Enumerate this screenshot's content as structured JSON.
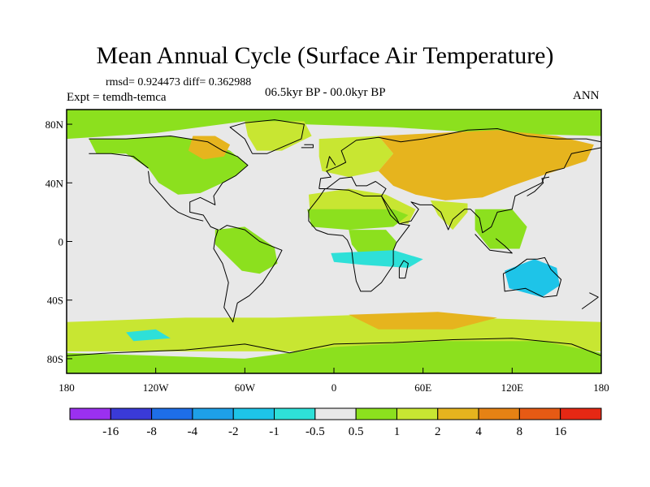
{
  "chart_data": {
    "type": "heatmap",
    "title": "Mean Annual Cycle (Surface Air Temperature)",
    "stats_line": "rmsd= 0.924473 diff= 0.362988",
    "expt_line": "Expt = temdh-temca",
    "period_line": "06.5kyr BP - 00.0kyr BP",
    "season": "ANN",
    "xlim": [
      -180,
      180
    ],
    "ylim": [
      -90,
      90
    ],
    "x_ticks": [
      {
        "value": -180,
        "label": "180"
      },
      {
        "value": -120,
        "label": "120W"
      },
      {
        "value": -60,
        "label": "60W"
      },
      {
        "value": 0,
        "label": "0"
      },
      {
        "value": 60,
        "label": "60E"
      },
      {
        "value": 120,
        "label": "120E"
      },
      {
        "value": 180,
        "label": "180"
      }
    ],
    "y_ticks": [
      {
        "value": 80,
        "label": "80N"
      },
      {
        "value": 40,
        "label": "40N"
      },
      {
        "value": 0,
        "label": "0"
      },
      {
        "value": -40,
        "label": "40S"
      },
      {
        "value": -80,
        "label": "80S"
      }
    ],
    "levels": [
      "-16",
      "-8",
      "-4",
      "-2",
      "-1",
      "-0.5",
      "0.5",
      "1",
      "2",
      "4",
      "8",
      "16"
    ],
    "colors": [
      "#9b30f0",
      "#3a3ad8",
      "#1e6ee8",
      "#1ea0e8",
      "#1ec4e8",
      "#2ee0d8",
      "#e8e8e8",
      "#8ce01e",
      "#c8e632",
      "#e6b41e",
      "#e68214",
      "#e65a14",
      "#e62814"
    ],
    "regions": [
      {
        "name": "arctic-band",
        "bin": 7,
        "pts": [
          [
            -180,
            90
          ],
          [
            180,
            90
          ],
          [
            180,
            72
          ],
          [
            100,
            74
          ],
          [
            40,
            78
          ],
          [
            -20,
            80
          ],
          [
            -60,
            82
          ],
          [
            -120,
            74
          ],
          [
            -180,
            70
          ]
        ]
      },
      {
        "name": "north-america",
        "bin": 7,
        "pts": [
          [
            -165,
            70
          ],
          [
            -140,
            70
          ],
          [
            -110,
            72
          ],
          [
            -85,
            68
          ],
          [
            -70,
            62
          ],
          [
            -58,
            52
          ],
          [
            -66,
            45
          ],
          [
            -75,
            40
          ],
          [
            -90,
            33
          ],
          [
            -105,
            32
          ],
          [
            -118,
            40
          ],
          [
            -125,
            50
          ],
          [
            -140,
            60
          ],
          [
            -160,
            60
          ]
        ]
      },
      {
        "name": "canada-warm",
        "bin": 9,
        "pts": [
          [
            -95,
            72
          ],
          [
            -80,
            72
          ],
          [
            -70,
            66
          ],
          [
            -74,
            58
          ],
          [
            -88,
            56
          ],
          [
            -98,
            62
          ]
        ]
      },
      {
        "name": "greenland-sea",
        "bin": 8,
        "pts": [
          [
            -60,
            82
          ],
          [
            -20,
            82
          ],
          [
            -15,
            72
          ],
          [
            -35,
            62
          ],
          [
            -52,
            62
          ],
          [
            -58,
            72
          ]
        ]
      },
      {
        "name": "europe-west",
        "bin": 8,
        "pts": [
          [
            -10,
            70
          ],
          [
            30,
            72
          ],
          [
            40,
            60
          ],
          [
            30,
            48
          ],
          [
            10,
            44
          ],
          [
            -8,
            48
          ],
          [
            -10,
            58
          ]
        ]
      },
      {
        "name": "eurasia-warm",
        "bin": 9,
        "pts": [
          [
            30,
            72
          ],
          [
            70,
            74
          ],
          [
            110,
            76
          ],
          [
            150,
            72
          ],
          [
            175,
            66
          ],
          [
            170,
            55
          ],
          [
            140,
            45
          ],
          [
            120,
            38
          ],
          [
            100,
            30
          ],
          [
            75,
            28
          ],
          [
            55,
            32
          ],
          [
            40,
            38
          ],
          [
            30,
            48
          ],
          [
            40,
            60
          ]
        ]
      },
      {
        "name": "north-africa",
        "bin": 8,
        "pts": [
          [
            -17,
            32
          ],
          [
            10,
            36
          ],
          [
            35,
            32
          ],
          [
            55,
            22
          ],
          [
            50,
            12
          ],
          [
            30,
            14
          ],
          [
            10,
            16
          ],
          [
            -16,
            18
          ]
        ]
      },
      {
        "name": "sahel-band",
        "bin": 7,
        "pts": [
          [
            -18,
            22
          ],
          [
            40,
            22
          ],
          [
            50,
            18
          ],
          [
            40,
            10
          ],
          [
            10,
            8
          ],
          [
            -15,
            10
          ]
        ]
      },
      {
        "name": "india",
        "bin": 8,
        "pts": [
          [
            65,
            28
          ],
          [
            90,
            26
          ],
          [
            90,
            20
          ],
          [
            80,
            8
          ],
          [
            70,
            18
          ]
        ]
      },
      {
        "name": "southeast-asia",
        "bin": 7,
        "pts": [
          [
            95,
            22
          ],
          [
            120,
            22
          ],
          [
            130,
            10
          ],
          [
            125,
            -5
          ],
          [
            105,
            -5
          ],
          [
            95,
            8
          ]
        ]
      },
      {
        "name": "central-africa",
        "bin": 7,
        "pts": [
          [
            10,
            8
          ],
          [
            35,
            8
          ],
          [
            42,
            0
          ],
          [
            38,
            -12
          ],
          [
            20,
            -12
          ],
          [
            12,
            -2
          ]
        ]
      },
      {
        "name": "south-atlantic-cool",
        "bin": 5,
        "pts": [
          [
            -2,
            -8
          ],
          [
            40,
            -6
          ],
          [
            60,
            -12
          ],
          [
            50,
            -18
          ],
          [
            20,
            -16
          ],
          [
            0,
            -14
          ]
        ]
      },
      {
        "name": "australia-cool",
        "bin": 4,
        "pts": [
          [
            115,
            -20
          ],
          [
            135,
            -12
          ],
          [
            150,
            -18
          ],
          [
            152,
            -30
          ],
          [
            140,
            -38
          ],
          [
            118,
            -32
          ]
        ]
      },
      {
        "name": "south-america-green",
        "bin": 7,
        "pts": [
          [
            -80,
            8
          ],
          [
            -60,
            10
          ],
          [
            -40,
            -4
          ],
          [
            -38,
            -15
          ],
          [
            -50,
            -22
          ],
          [
            -62,
            -20
          ],
          [
            -72,
            -10
          ],
          [
            -80,
            -2
          ]
        ]
      },
      {
        "name": "southern-ocean-band",
        "bin": 8,
        "pts": [
          [
            -180,
            -55
          ],
          [
            -100,
            -52
          ],
          [
            -40,
            -52
          ],
          [
            20,
            -50
          ],
          [
            90,
            -52
          ],
          [
            180,
            -55
          ],
          [
            180,
            -75
          ],
          [
            -180,
            -75
          ]
        ]
      },
      {
        "name": "southern-ocean-warm",
        "bin": 9,
        "pts": [
          [
            10,
            -50
          ],
          [
            70,
            -48
          ],
          [
            110,
            -52
          ],
          [
            80,
            -60
          ],
          [
            30,
            -60
          ]
        ]
      },
      {
        "name": "antarctic-cool",
        "bin": 5,
        "pts": [
          [
            -140,
            -62
          ],
          [
            -120,
            -60
          ],
          [
            -110,
            -66
          ],
          [
            -135,
            -68
          ]
        ]
      },
      {
        "name": "antarctic-land",
        "bin": 7,
        "pts": [
          [
            -180,
            -76
          ],
          [
            -60,
            -80
          ],
          [
            0,
            -72
          ],
          [
            70,
            -68
          ],
          [
            140,
            -68
          ],
          [
            180,
            -76
          ],
          [
            180,
            -90
          ],
          [
            -180,
            -90
          ]
        ]
      }
    ],
    "coastlines": [
      [
        [
          -165,
          70
        ],
        [
          -140,
          70
        ],
        [
          -110,
          72
        ],
        [
          -85,
          68
        ],
        [
          -75,
          62
        ],
        [
          -65,
          58
        ],
        [
          -58,
          52
        ],
        [
          -66,
          45
        ],
        [
          -75,
          40
        ],
        [
          -81,
          31
        ],
        [
          -80,
          25
        ],
        [
          -90,
          30
        ],
        [
          -97,
          27
        ],
        [
          -97,
          20
        ],
        [
          -88,
          18
        ],
        [
          -83,
          10
        ],
        [
          -78,
          8
        ],
        [
          -80,
          2
        ],
        [
          -81,
          -5
        ],
        [
          -75,
          -15
        ],
        [
          -71,
          -28
        ],
        [
          -74,
          -45
        ],
        [
          -68,
          -55
        ],
        [
          -65,
          -42
        ],
        [
          -57,
          -37
        ],
        [
          -48,
          -28
        ],
        [
          -39,
          -14
        ],
        [
          -35,
          -6
        ],
        [
          -50,
          0
        ],
        [
          -60,
          8
        ],
        [
          -72,
          11
        ],
        [
          -77,
          8
        ]
      ],
      [
        [
          -125,
          48
        ],
        [
          -124,
          40
        ],
        [
          -117,
          32
        ],
        [
          -110,
          24
        ],
        [
          -105,
          20
        ],
        [
          -96,
          16
        ],
        [
          -88,
          14
        ]
      ],
      [
        [
          -165,
          60
        ],
        [
          -150,
          60
        ],
        [
          -135,
          58
        ],
        [
          -125,
          50
        ]
      ],
      [
        [
          -55,
          60
        ],
        [
          -45,
          60
        ],
        [
          -22,
          70
        ],
        [
          -20,
          80
        ],
        [
          -40,
          83
        ],
        [
          -60,
          81
        ],
        [
          -70,
          78
        ],
        [
          -60,
          70
        ],
        [
          -55,
          60
        ]
      ],
      [
        [
          -10,
          36
        ],
        [
          -9,
          43
        ],
        [
          -2,
          44
        ],
        [
          -5,
          48
        ],
        [
          2,
          51
        ],
        [
          8,
          54
        ],
        [
          5,
          62
        ],
        [
          15,
          69
        ],
        [
          30,
          71
        ],
        [
          45,
          68
        ],
        [
          60,
          70
        ],
        [
          75,
          73
        ],
        [
          90,
          76
        ],
        [
          110,
          77
        ],
        [
          130,
          72
        ],
        [
          150,
          70
        ],
        [
          170,
          70
        ],
        [
          180,
          68
        ]
      ],
      [
        [
          180,
          64
        ],
        [
          160,
          60
        ],
        [
          155,
          50
        ],
        [
          143,
          47
        ],
        [
          140,
          40
        ],
        [
          130,
          35
        ],
        [
          122,
          31
        ],
        [
          120,
          22
        ],
        [
          110,
          20
        ],
        [
          106,
          10
        ],
        [
          100,
          6
        ],
        [
          98,
          16
        ],
        [
          92,
          22
        ],
        [
          88,
          22
        ],
        [
          80,
          15
        ],
        [
          77,
          8
        ],
        [
          72,
          20
        ],
        [
          66,
          25
        ],
        [
          58,
          25
        ],
        [
          52,
          27
        ],
        [
          57,
          22
        ],
        [
          52,
          14
        ],
        [
          44,
          12
        ],
        [
          42,
          16
        ],
        [
          34,
          28
        ],
        [
          32,
          31
        ],
        [
          35,
          36
        ],
        [
          28,
          41
        ],
        [
          22,
          38
        ],
        [
          15,
          38
        ],
        [
          12,
          44
        ],
        [
          4,
          43
        ],
        [
          -5,
          36
        ],
        [
          -10,
          36
        ]
      ],
      [
        [
          -6,
          36
        ],
        [
          -10,
          30
        ],
        [
          -17,
          21
        ],
        [
          -17,
          14
        ],
        [
          -12,
          8
        ],
        [
          -4,
          5
        ],
        [
          6,
          4
        ],
        [
          9,
          1
        ],
        [
          12,
          -6
        ],
        [
          13,
          -15
        ],
        [
          15,
          -27
        ],
        [
          18,
          -34
        ],
        [
          25,
          -34
        ],
        [
          32,
          -28
        ],
        [
          40,
          -16
        ],
        [
          40,
          -6
        ],
        [
          42,
          -1
        ],
        [
          51,
          11
        ],
        [
          44,
          12
        ],
        [
          38,
          18
        ],
        [
          32,
          31
        ],
        [
          20,
          31
        ],
        [
          10,
          35
        ],
        [
          -6,
          36
        ]
      ],
      [
        [
          114,
          -22
        ],
        [
          122,
          -18
        ],
        [
          130,
          -12
        ],
        [
          137,
          -12
        ],
        [
          142,
          -11
        ],
        [
          146,
          -19
        ],
        [
          153,
          -26
        ],
        [
          150,
          -37
        ],
        [
          141,
          -38
        ],
        [
          135,
          -35
        ],
        [
          129,
          -32
        ],
        [
          115,
          -34
        ],
        [
          114,
          -22
        ]
      ],
      [
        [
          44,
          -25
        ],
        [
          48,
          -25
        ],
        [
          50,
          -15
        ],
        [
          47,
          -13
        ],
        [
          44,
          -18
        ],
        [
          44,
          -25
        ]
      ],
      [
        [
          -180,
          -78
        ],
        [
          -150,
          -76
        ],
        [
          -100,
          -74
        ],
        [
          -60,
          -70
        ],
        [
          -30,
          -76
        ],
        [
          0,
          -70
        ],
        [
          40,
          -69
        ],
        [
          80,
          -67
        ],
        [
          120,
          -66
        ],
        [
          160,
          -70
        ],
        [
          180,
          -78
        ]
      ],
      [
        [
          -5,
          50
        ],
        [
          -3,
          58
        ],
        [
          1,
          52
        ]
      ],
      [
        [
          130,
          31
        ],
        [
          135,
          34
        ],
        [
          141,
          40
        ],
        [
          140,
          43
        ],
        [
          145,
          44
        ]
      ],
      [
        [
          95,
          5
        ],
        [
          105,
          -6
        ],
        [
          120,
          -8
        ],
        [
          115,
          -3
        ],
        [
          109,
          2
        ]
      ],
      [
        [
          167,
          -46
        ],
        [
          174,
          -41
        ],
        [
          178,
          -38
        ],
        [
          172,
          -35
        ]
      ],
      [
        [
          -20,
          66
        ],
        [
          -14,
          66
        ],
        [
          -14,
          64
        ],
        [
          -22,
          64
        ]
      ]
    ]
  }
}
